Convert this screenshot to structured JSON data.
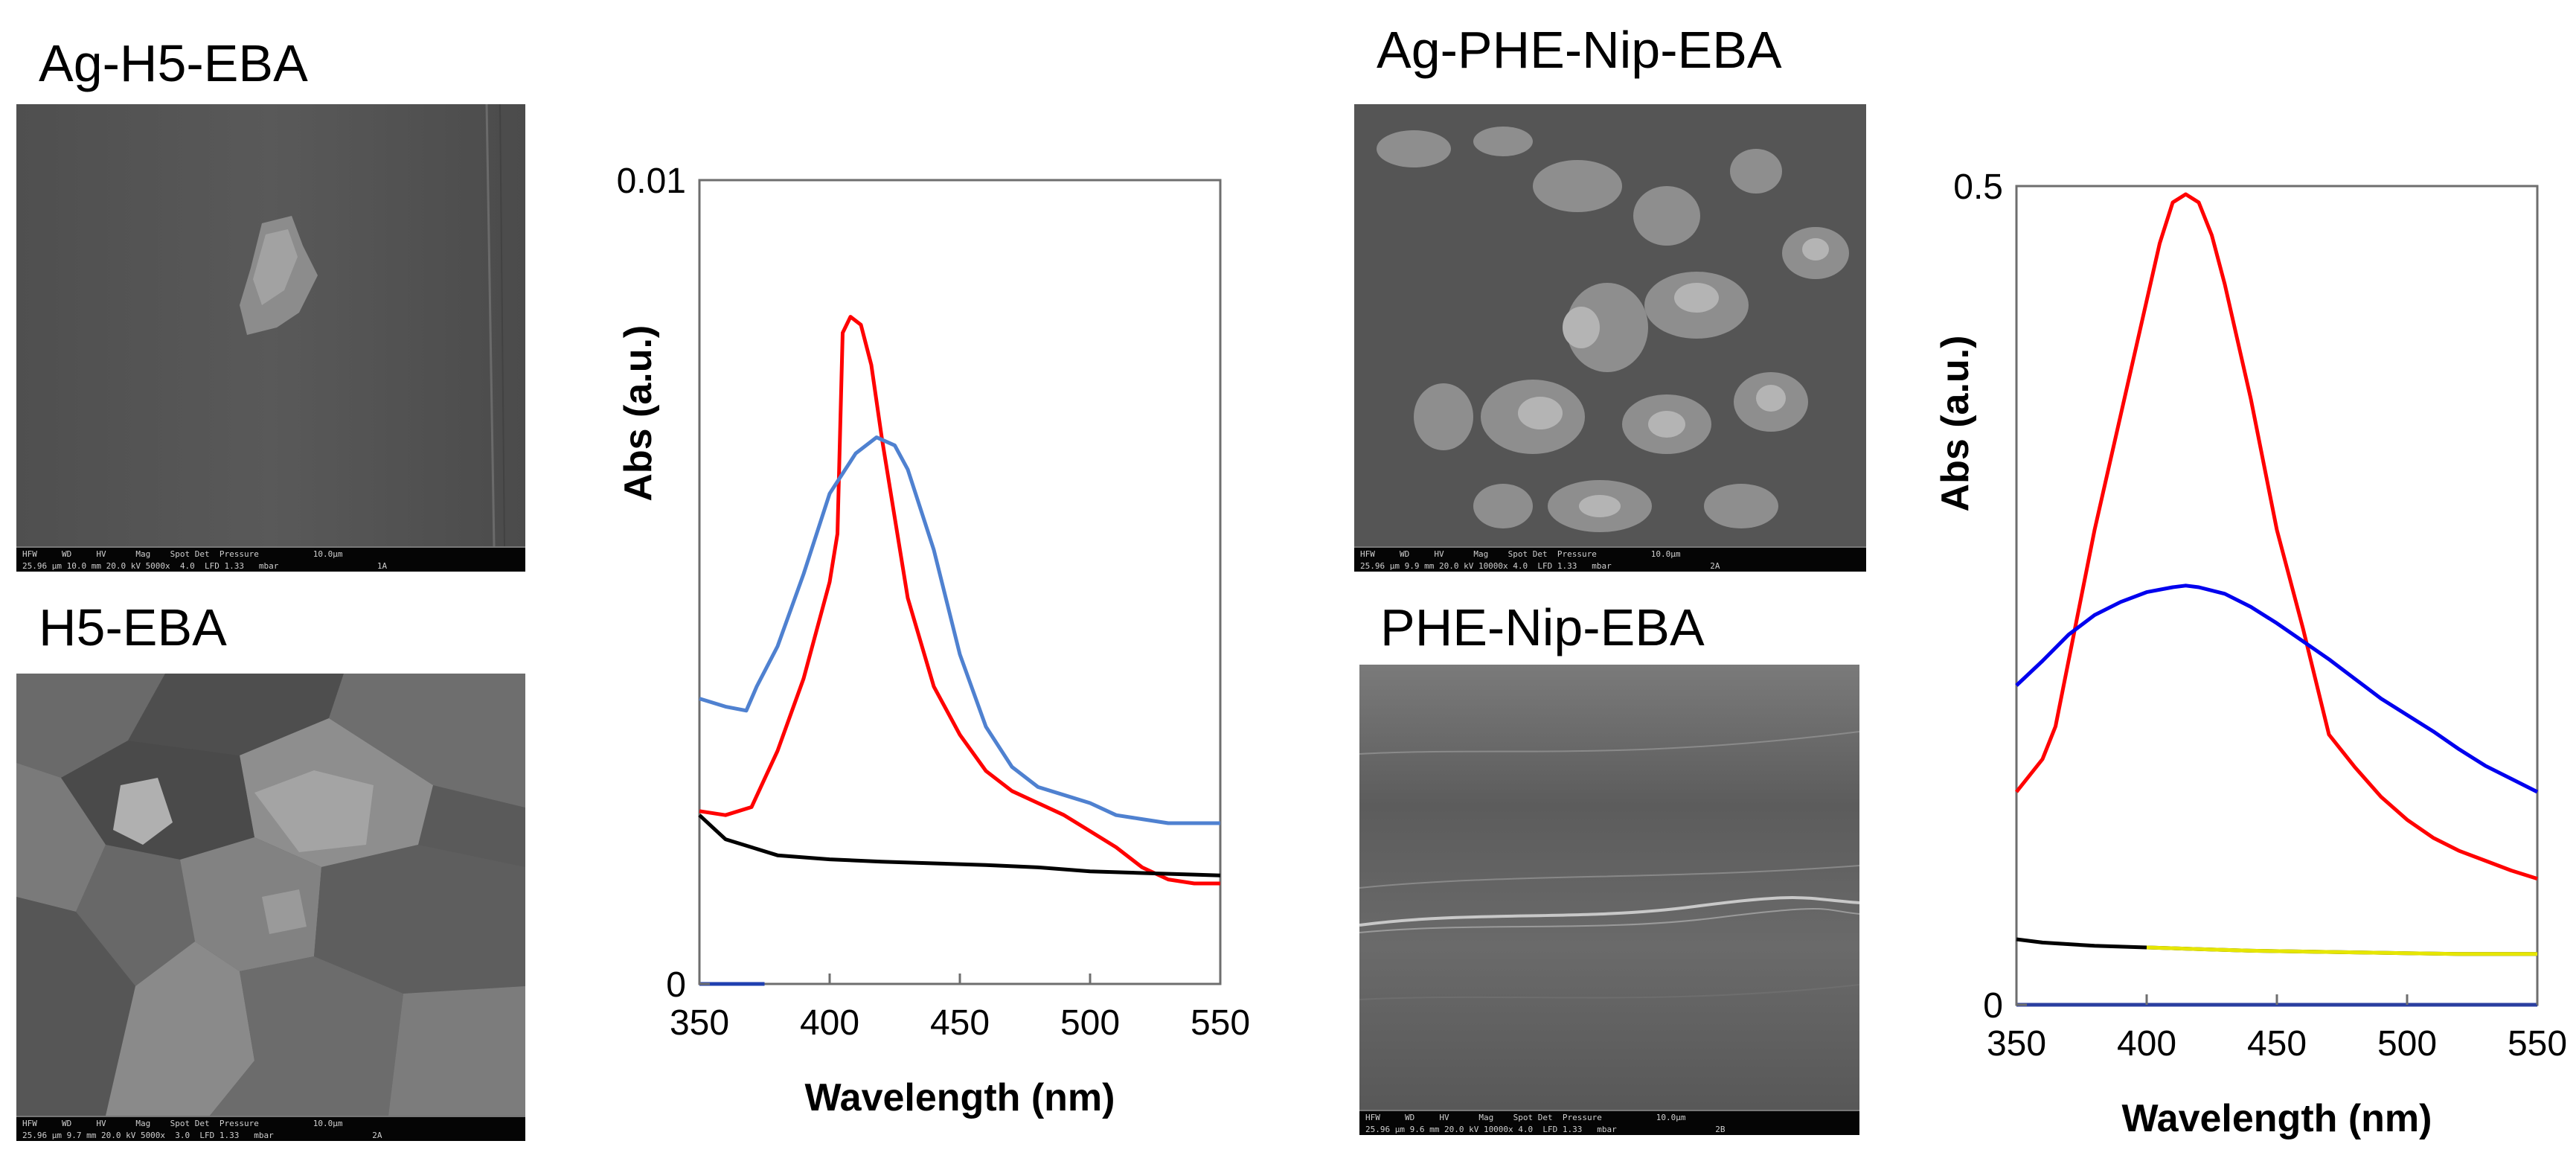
{
  "panels": {
    "ag_h5_eba": {
      "label": "Ag-H5-EBA",
      "databar": "HFW     WD     HV      Mag    Spot Det  Pressure           10.0μm\n25.96 μm 10.0 mm 20.0 kV 5000x  4.0  LFD 1.33   mbar                    1A"
    },
    "h5_eba": {
      "label": "H5-EBA",
      "databar": "HFW     WD     HV      Mag    Spot Det  Pressure           10.0μm\n25.96 μm 9.7 mm 20.0 kV 5000x  3.0  LFD 1.33   mbar                    2A"
    },
    "ag_phe_nip_eba": {
      "label": "Ag-PHE-Nip-EBA",
      "databar": "HFW     WD     HV      Mag    Spot Det  Pressure           10.0μm\n25.96 μm 9.9 mm 20.0 kV 10000x 4.0  LFD 1.33   mbar                    2A"
    },
    "phe_nip_eba": {
      "label": "PHE-Nip-EBA",
      "databar": "HFW     WD     HV      Mag    Spot Det  Pressure           10.0μm\n25.96 μm 9.6 mm 20.0 kV 10000x 4.0  LFD 1.33   mbar                    2B"
    }
  },
  "chart_data": [
    {
      "type": "line",
      "title": "",
      "xlabel": "Wavelength (nm)",
      "ylabel": "Abs (a.u.)",
      "xlim": [
        350,
        550
      ],
      "ylim": [
        0,
        0.01
      ],
      "xticks": [
        "350",
        "400",
        "450",
        "500",
        "550"
      ],
      "yticks": [
        "0",
        "0.01"
      ],
      "grid": false,
      "series": [
        {
          "name": "red",
          "color": "#ff0000",
          "x": [
            350,
            360,
            370,
            375,
            380,
            390,
            400,
            403,
            405,
            408,
            412,
            416,
            420,
            425,
            430,
            440,
            450,
            460,
            470,
            480,
            490,
            500,
            510,
            520,
            530,
            540,
            550
          ],
          "y": [
            0.00215,
            0.0021,
            0.0022,
            0.00255,
            0.0029,
            0.0038,
            0.005,
            0.0056,
            0.0081,
            0.0083,
            0.0082,
            0.0077,
            0.0068,
            0.0058,
            0.0048,
            0.0037,
            0.0031,
            0.00265,
            0.0024,
            0.00225,
            0.0021,
            0.0019,
            0.0017,
            0.00145,
            0.0013,
            0.00125,
            0.00125
          ]
        },
        {
          "name": "blue",
          "color": "#4f81d0",
          "x": [
            350,
            360,
            368,
            372,
            380,
            390,
            400,
            410,
            418,
            425,
            430,
            440,
            450,
            460,
            470,
            480,
            490,
            500,
            510,
            520,
            530,
            540,
            550
          ],
          "y": [
            0.00355,
            0.00345,
            0.0034,
            0.0037,
            0.0042,
            0.0051,
            0.0061,
            0.0066,
            0.0068,
            0.0067,
            0.0064,
            0.0054,
            0.0041,
            0.0032,
            0.0027,
            0.00245,
            0.00235,
            0.00225,
            0.0021,
            0.00205,
            0.002,
            0.002,
            0.002
          ]
        },
        {
          "name": "black",
          "color": "#000000",
          "x": [
            350,
            355,
            360,
            370,
            380,
            400,
            420,
            440,
            460,
            480,
            500,
            520,
            540,
            550
          ],
          "y": [
            0.0021,
            0.00195,
            0.0018,
            0.0017,
            0.0016,
            0.00155,
            0.00152,
            0.0015,
            0.00148,
            0.00145,
            0.0014,
            0.00138,
            0.00136,
            0.00135
          ]
        },
        {
          "name": "navy",
          "color": "#1f3fb0",
          "x": [
            350,
            375
          ],
          "y": [
            0,
            0
          ]
        }
      ]
    },
    {
      "type": "line",
      "title": "",
      "xlabel": "Wavelength (nm)",
      "ylabel": "Abs (a.u.)",
      "xlim": [
        350,
        550
      ],
      "ylim": [
        0,
        0.5
      ],
      "xticks": [
        "350",
        "400",
        "450",
        "500",
        "550"
      ],
      "yticks": [
        "0",
        "0.5"
      ],
      "grid": false,
      "series": [
        {
          "name": "red",
          "color": "#ff0000",
          "x": [
            350,
            360,
            365,
            370,
            380,
            390,
            400,
            405,
            410,
            415,
            420,
            425,
            430,
            440,
            450,
            460,
            470,
            480,
            490,
            500,
            510,
            520,
            530,
            540,
            550
          ],
          "y": [
            0.13,
            0.15,
            0.17,
            0.21,
            0.29,
            0.36,
            0.43,
            0.465,
            0.49,
            0.495,
            0.49,
            0.47,
            0.44,
            0.37,
            0.29,
            0.23,
            0.165,
            0.145,
            0.127,
            0.113,
            0.102,
            0.094,
            0.088,
            0.082,
            0.077
          ]
        },
        {
          "name": "blue",
          "color": "#0000ee",
          "x": [
            350,
            360,
            370,
            380,
            390,
            400,
            410,
            415,
            420,
            430,
            440,
            450,
            460,
            470,
            480,
            490,
            500,
            510,
            520,
            530,
            540,
            550
          ],
          "y": [
            0.195,
            0.21,
            0.226,
            0.238,
            0.246,
            0.252,
            0.255,
            0.256,
            0.255,
            0.251,
            0.243,
            0.233,
            0.222,
            0.211,
            0.199,
            0.187,
            0.177,
            0.167,
            0.156,
            0.146,
            0.138,
            0.13
          ]
        },
        {
          "name": "black",
          "color": "#000000",
          "x": [
            350,
            360,
            380,
            400,
            420,
            440,
            460,
            480,
            500,
            520,
            550
          ],
          "y": [
            0.04,
            0.038,
            0.036,
            0.035,
            0.034,
            0.033,
            0.0325,
            0.032,
            0.0315,
            0.031,
            0.031
          ]
        },
        {
          "name": "yellow",
          "color": "#e6e600",
          "x": [
            400,
            420,
            440,
            460,
            480,
            500,
            520,
            550
          ],
          "y": [
            0.035,
            0.034,
            0.033,
            0.0325,
            0.032,
            0.0315,
            0.031,
            0.031
          ]
        },
        {
          "name": "navy",
          "color": "#2b3fa0",
          "x": [
            350,
            550
          ],
          "y": [
            0,
            0
          ]
        }
      ]
    }
  ]
}
